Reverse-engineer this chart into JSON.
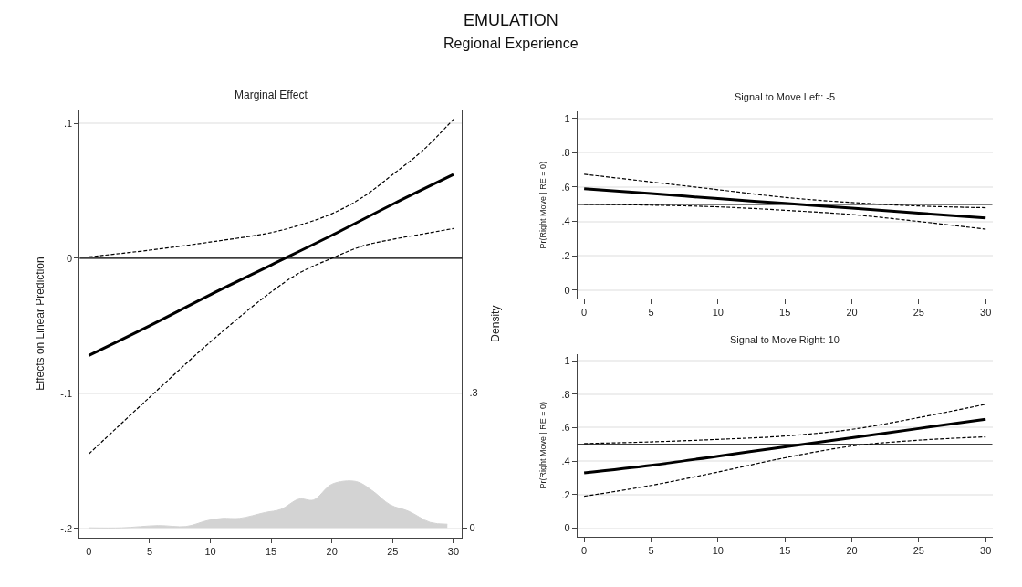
{
  "chart_data": [
    {
      "type": "line",
      "title": "Marginal Effect",
      "annotations": [
        "EMULATION",
        "Regional Experience"
      ],
      "ylabel": "Effects on Linear Prediction",
      "y2label": "Density",
      "xlim": [
        -0.75,
        30.7
      ],
      "xticks": [
        0,
        5,
        10,
        15,
        20,
        25,
        30
      ],
      "ylim": [
        -0.207,
        0.11
      ],
      "yticks": [
        {
          "value": -0.2,
          "label": "-.2"
        },
        {
          "value": -0.1,
          "label": "-.1"
        },
        0,
        {
          "value": 0.1,
          "label": ".1"
        }
      ],
      "y2lim": [
        -0.022,
        0.93
      ],
      "y2ticks": [
        0,
        {
          "value": 0.3,
          "label": ".3"
        }
      ],
      "grid": "y",
      "ref_lines": [
        {
          "axis": "y",
          "value": 0,
          "color": "#000000"
        }
      ],
      "series": [
        {
          "type": "area",
          "axis": "y2",
          "color": "#d3d3d3",
          "x": [
            0,
            2.7,
            5.7,
            8,
            9.75,
            11,
            12.4,
            14.5,
            15.8,
            17.3,
            18.5,
            20,
            22,
            23.3,
            24.8,
            26.3,
            28.1,
            29.5
          ],
          "values": [
            0.0,
            0.0,
            0.005,
            0.003,
            0.016,
            0.021,
            0.021,
            0.034,
            0.041,
            0.064,
            0.062,
            0.097,
            0.103,
            0.083,
            0.051,
            0.037,
            0.012,
            0.008
          ]
        },
        {
          "type": "line",
          "color": "#000000",
          "line_style": "solid",
          "x": [
            0,
            5,
            10,
            15,
            20,
            25,
            30
          ],
          "values": [
            -0.072,
            -0.05,
            -0.027,
            -0.005,
            0.017,
            0.04,
            0.062
          ]
        },
        {
          "type": "line",
          "color": "#000000",
          "line_style": "dashed",
          "x": [
            0,
            5,
            10,
            15,
            17.5,
            20,
            22.5,
            25,
            27.5,
            30
          ],
          "values": [
            0.001,
            0.006,
            0.012,
            0.019,
            0.025,
            0.033,
            0.045,
            0.062,
            0.08,
            0.103
          ]
        },
        {
          "type": "line",
          "color": "#000000",
          "line_style": "dashed",
          "x": [
            0,
            5,
            10,
            15,
            17.5,
            20,
            22.5,
            25,
            27.5,
            30
          ],
          "values": [
            -0.145,
            -0.103,
            -0.062,
            -0.025,
            -0.01,
            0.0,
            0.009,
            0.014,
            0.018,
            0.022
          ]
        }
      ]
    },
    {
      "type": "line",
      "title": "Signal to Move Left: -5",
      "ylabel": "Pr(Right Move | RE = 0)",
      "xlim": [
        -0.5,
        30.5
      ],
      "xticks": [
        0,
        5,
        10,
        15,
        20,
        25,
        30
      ],
      "ylim": [
        -0.05,
        1.04
      ],
      "yticks": [
        0,
        {
          "value": 0.2,
          "label": ".2"
        },
        {
          "value": 0.4,
          "label": ".4"
        },
        {
          "value": 0.6,
          "label": ".6"
        },
        {
          "value": 0.8,
          "label": ".8"
        },
        1
      ],
      "grid": "y",
      "ref_lines": [
        {
          "axis": "y",
          "value": 0.5,
          "color": "#000000"
        }
      ],
      "series": [
        {
          "type": "line",
          "color": "#000000",
          "line_style": "solid",
          "x": [
            0,
            5,
            10,
            15,
            20,
            25,
            30
          ],
          "values": [
            0.59,
            0.562,
            0.533,
            0.505,
            0.477,
            0.448,
            0.42
          ]
        },
        {
          "type": "line",
          "color": "#000000",
          "line_style": "dashed",
          "x": [
            0,
            5,
            10,
            15,
            20,
            25,
            30
          ],
          "values": [
            0.675,
            0.63,
            0.585,
            0.54,
            0.51,
            0.49,
            0.48
          ]
        },
        {
          "type": "line",
          "color": "#000000",
          "line_style": "dashed",
          "x": [
            0,
            5,
            10,
            15,
            20,
            25,
            30
          ],
          "values": [
            0.5,
            0.495,
            0.485,
            0.465,
            0.44,
            0.4,
            0.355
          ]
        }
      ]
    },
    {
      "type": "line",
      "title": "Signal to Move Right: 10",
      "ylabel": "Pr(Right Move | RE = 0)",
      "xlim": [
        -0.5,
        30.5
      ],
      "xticks": [
        0,
        5,
        10,
        15,
        20,
        25,
        30
      ],
      "ylim": [
        -0.05,
        1.04
      ],
      "yticks": [
        0,
        {
          "value": 0.2,
          "label": ".2"
        },
        {
          "value": 0.4,
          "label": ".4"
        },
        {
          "value": 0.6,
          "label": ".6"
        },
        {
          "value": 0.8,
          "label": ".8"
        },
        1
      ],
      "grid": "y",
      "ref_lines": [
        {
          "axis": "y",
          "value": 0.5,
          "color": "#000000"
        }
      ],
      "series": [
        {
          "type": "line",
          "color": "#000000",
          "line_style": "solid",
          "x": [
            0,
            5,
            10,
            15,
            20,
            25,
            30
          ],
          "values": [
            0.33,
            0.375,
            0.43,
            0.485,
            0.54,
            0.595,
            0.65
          ]
        },
        {
          "type": "line",
          "color": "#000000",
          "line_style": "dashed",
          "x": [
            0,
            5,
            10,
            15,
            20,
            25,
            30
          ],
          "values": [
            0.505,
            0.515,
            0.53,
            0.55,
            0.59,
            0.66,
            0.74
          ]
        },
        {
          "type": "line",
          "color": "#000000",
          "line_style": "dashed",
          "x": [
            0,
            5,
            10,
            15,
            20,
            25,
            30
          ],
          "values": [
            0.19,
            0.255,
            0.335,
            0.42,
            0.49,
            0.525,
            0.545
          ]
        }
      ]
    }
  ]
}
